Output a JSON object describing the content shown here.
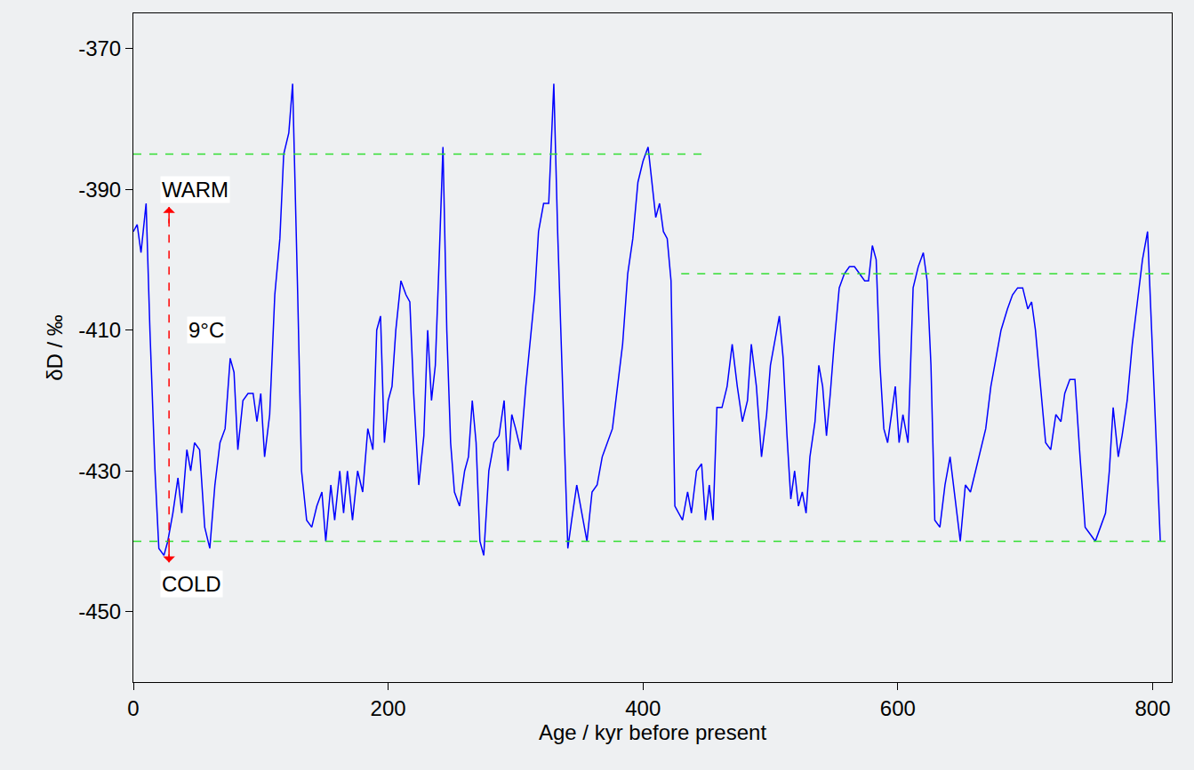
{
  "chart_data": {
    "type": "line",
    "x_label": "Age / kyr before present",
    "y_label": "δD / ‰",
    "x": [
      0,
      3,
      6,
      10,
      13,
      17,
      20,
      24,
      27,
      31,
      35,
      38,
      42,
      45,
      48,
      52,
      56,
      60,
      64,
      68,
      72,
      76,
      79,
      82,
      86,
      90,
      94,
      97,
      100,
      103,
      107,
      111,
      115,
      118,
      122,
      125,
      129,
      132,
      136,
      140,
      144,
      148,
      151,
      155,
      158,
      162,
      165,
      168,
      172,
      176,
      180,
      184,
      188,
      191,
      194,
      197,
      200,
      203,
      206,
      210,
      214,
      217,
      220,
      224,
      228,
      231,
      234,
      237,
      240,
      243,
      246,
      249,
      252,
      256,
      260,
      263,
      266,
      269,
      272,
      275,
      279,
      283,
      287,
      291,
      294,
      297,
      300,
      304,
      308,
      312,
      315,
      318,
      322,
      326,
      330,
      333,
      337,
      341,
      344,
      348,
      352,
      356,
      360,
      364,
      368,
      372,
      376,
      380,
      384,
      388,
      392,
      396,
      400,
      404,
      407,
      410,
      413,
      416,
      419,
      422,
      425,
      428,
      431,
      435,
      438,
      442,
      446,
      449,
      452,
      455,
      458,
      462,
      466,
      470,
      474,
      478,
      482,
      485,
      489,
      493,
      497,
      500,
      503,
      507,
      510,
      513,
      516,
      519,
      522,
      525,
      528,
      531,
      535,
      538,
      541,
      544,
      547,
      550,
      554,
      558,
      562,
      566,
      570,
      574,
      577,
      580,
      583,
      586,
      589,
      592,
      595,
      598,
      601,
      604,
      608,
      612,
      616,
      620,
      623,
      626,
      629,
      633,
      637,
      641,
      645,
      649,
      653,
      657,
      661,
      665,
      669,
      673,
      677,
      681,
      686,
      690,
      694,
      698,
      702,
      705,
      708,
      712,
      716,
      720,
      724,
      728,
      731,
      735,
      739,
      743,
      747,
      751,
      755,
      759,
      763,
      766,
      769,
      773,
      776,
      780,
      784,
      788,
      792,
      796,
      800,
      804,
      806
    ],
    "values": [
      -396,
      -395,
      -399,
      -392,
      -410,
      -430,
      -441,
      -442,
      -440,
      -436,
      -431,
      -436,
      -427,
      -430,
      -426,
      -427,
      -438,
      -441,
      -432,
      -426,
      -424,
      -414,
      -416,
      -427,
      -420,
      -419,
      -419,
      -423,
      -419,
      -428,
      -422,
      -405,
      -397,
      -385,
      -382,
      -375,
      -405,
      -430,
      -437,
      -438,
      -435,
      -433,
      -440,
      -432,
      -437,
      -430,
      -436,
      -430,
      -437,
      -430,
      -433,
      -424,
      -427,
      -410,
      -408,
      -426,
      -420,
      -418,
      -410,
      -403,
      -405,
      -406,
      -419,
      -432,
      -425,
      -410,
      -420,
      -415,
      -400,
      -384,
      -410,
      -426,
      -433,
      -435,
      -430,
      -428,
      -420,
      -426,
      -440,
      -442,
      -430,
      -426,
      -425,
      -420,
      -430,
      -422,
      -424,
      -427,
      -418,
      -410,
      -405,
      -396,
      -392,
      -392,
      -375,
      -396,
      -420,
      -441,
      -437,
      -432,
      -436,
      -440,
      -433,
      -432,
      -428,
      -426,
      -424,
      -418,
      -412,
      -402,
      -397,
      -389,
      -386,
      -384,
      -389,
      -394,
      -392,
      -396,
      -397,
      -403,
      -435,
      -436,
      -437,
      -433,
      -436,
      -430,
      -429,
      -437,
      -432,
      -437,
      -421,
      -421,
      -418,
      -412,
      -418,
      -423,
      -420,
      -412,
      -418,
      -428,
      -422,
      -415,
      -412,
      -408,
      -414,
      -425,
      -434,
      -430,
      -435,
      -433,
      -436,
      -428,
      -423,
      -415,
      -418,
      -425,
      -419,
      -412,
      -404,
      -402,
      -401,
      -401,
      -402,
      -403,
      -403,
      -398,
      -400,
      -415,
      -424,
      -426,
      -422,
      -418,
      -426,
      -422,
      -426,
      -404,
      -401,
      -399,
      -403,
      -415,
      -437,
      -438,
      -432,
      -428,
      -434,
      -440,
      -432,
      -433,
      -430,
      -427,
      -424,
      -418,
      -414,
      -410,
      -407,
      -405,
      -404,
      -404,
      -407,
      -406,
      -410,
      -418,
      -426,
      -427,
      -422,
      -423,
      -419,
      -417,
      -417,
      -428,
      -438,
      -439,
      -440,
      -438,
      -436,
      -430,
      -421,
      -428,
      -425,
      -420,
      -412,
      -406,
      -400,
      -396,
      -414,
      -430,
      -440
    ],
    "color": "#0000ff",
    "xlim": [
      0,
      815
    ],
    "xticks": [
      0,
      200,
      400,
      600,
      800
    ],
    "ylim": [
      -460,
      -365
    ],
    "yticks": [
      -450,
      -430,
      -410,
      -390,
      -370
    ],
    "grid": false,
    "reference_lines": [
      {
        "y": -385,
        "x": [
          0,
          450
        ],
        "color": "#33dd33",
        "line_style": "dash"
      },
      {
        "y": -402,
        "x": [
          430,
          815
        ],
        "color": "#33dd33",
        "line_style": "dash"
      },
      {
        "y": -440,
        "x": [
          0,
          815
        ],
        "color": "#33dd33",
        "line_style": "dash"
      }
    ],
    "arrow": {
      "x": 28,
      "y": [
        -443,
        -392.5
      ],
      "color": "#ff0000",
      "line_style": "dash"
    },
    "annotations": [
      {
        "text": "WARM",
        "x": 21,
        "y": -390
      },
      {
        "text": "9°C",
        "x": 42,
        "y": -410
      },
      {
        "text": "COLD",
        "x": 21,
        "y": -446
      }
    ]
  }
}
